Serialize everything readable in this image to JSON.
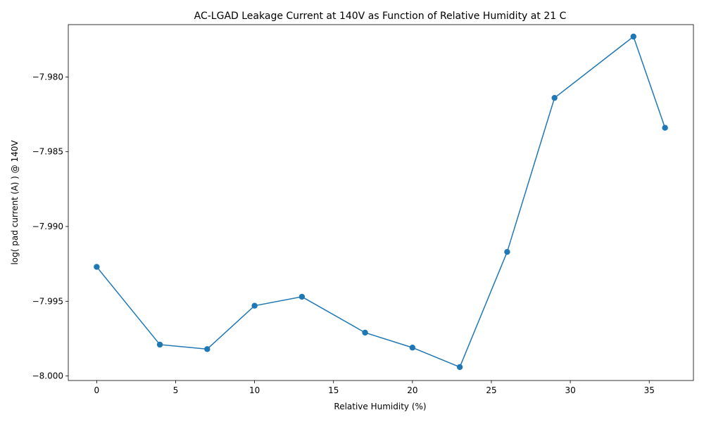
{
  "chart_data": {
    "type": "line",
    "title": "AC-LGAD Leakage Current at 140V as Function of Relative Humidity at 21 C",
    "xlabel": "Relative Humidity (%)",
    "ylabel": "log( pad current (A) ) @ 140V",
    "xlim": [
      -1.8,
      37.8
    ],
    "ylim": [
      -8.0003,
      -7.9765
    ],
    "xticks": [
      0,
      5,
      10,
      15,
      20,
      25,
      30,
      35
    ],
    "xtick_labels": [
      "0",
      "5",
      "10",
      "15",
      "20",
      "25",
      "30",
      "35"
    ],
    "yticks": [
      -8.0,
      -7.995,
      -7.99,
      -7.985,
      -7.98
    ],
    "ytick_labels": [
      "−8.000",
      "−7.995",
      "−7.990",
      "−7.985",
      "−7.980"
    ],
    "grid": false,
    "marker": "circle",
    "color": "#1f77b4",
    "series": [
      {
        "x": [
          0,
          4,
          7,
          10,
          13,
          17,
          20,
          23,
          26,
          29,
          34,
          36
        ],
        "y": [
          -7.9927,
          -7.9979,
          -7.9982,
          -7.9953,
          -7.9947,
          -7.9971,
          -7.9981,
          -7.9994,
          -7.9917,
          -7.9814,
          -7.9773,
          -7.9834
        ]
      }
    ]
  }
}
